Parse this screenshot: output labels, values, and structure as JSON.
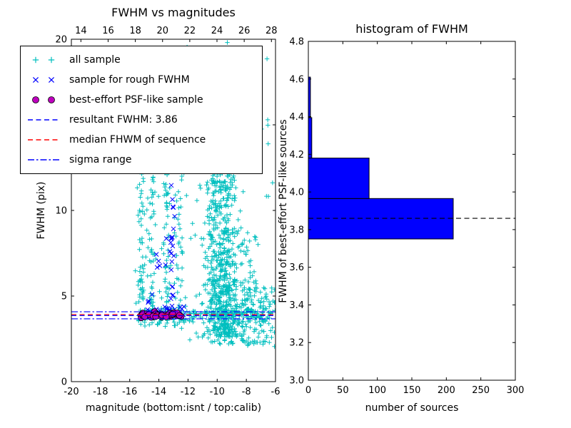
{
  "figure": {
    "background": "#ffffff",
    "text_color": "#000000"
  },
  "chart_data": [
    {
      "type": "scatter",
      "title": "FWHM vs magnitudes",
      "xlabel": "magnitude (bottom:isnt / top:calib)",
      "ylabel": "FWHM (pix)",
      "xlim": [
        -20,
        -6
      ],
      "ylim": [
        0,
        20
      ],
      "top_axis_range": [
        13.3,
        28.3
      ],
      "x_ticks_bottom": [
        -20,
        -18,
        -16,
        -14,
        -12,
        -10,
        -8,
        -6
      ],
      "x_ticks_top": [
        14,
        16,
        18,
        20,
        22,
        24,
        26,
        28
      ],
      "y_tick_values": [
        0,
        5,
        10,
        15,
        20
      ],
      "y_tick_labels": [
        "0",
        "5",
        "10",
        "15",
        "20"
      ],
      "series": [
        {
          "name": "all sample",
          "marker": "plus",
          "color": "#00bfbf",
          "clusters": [
            {
              "type": "column",
              "cx": -9.65,
              "sx": 0.55,
              "y0": 2.6,
              "y1": 13.5,
              "pow": 1.3,
              "count": 520
            },
            {
              "type": "column",
              "cx": -9.3,
              "sx": 0.9,
              "y0": 2.2,
              "y1": 6.0,
              "pow": 1.2,
              "count": 180
            },
            {
              "type": "column",
              "cx": -15.2,
              "sx": 0.12,
              "y0": 3.6,
              "y1": 13.3,
              "pow": 1,
              "count": 55
            },
            {
              "type": "column",
              "cx": -14.45,
              "sx": 0.12,
              "y0": 3.6,
              "y1": 12.2,
              "pow": 1,
              "count": 45
            },
            {
              "type": "column",
              "cx": -13.45,
              "sx": 0.15,
              "y0": 3.6,
              "y1": 14.0,
              "pow": 1,
              "count": 55
            },
            {
              "type": "column",
              "cx": -12.6,
              "sx": 0.15,
              "y0": 3.6,
              "y1": 12.0,
              "pow": 1,
              "count": 35
            },
            {
              "type": "band",
              "x0": -15.4,
              "x1": -6.1,
              "cy": 3.95,
              "sy": 0.18,
              "count": 160
            },
            {
              "type": "band",
              "x0": -15.3,
              "x1": -11.5,
              "cy": 3.4,
              "sy": 0.15,
              "count": 25
            },
            {
              "type": "uniform",
              "x0": -8.3,
              "x1": -6.0,
              "y0": 2.0,
              "y1": 5.5,
              "count": 110
            },
            {
              "type": "uniform",
              "x0": -12.3,
              "x1": -8.2,
              "y0": 13.5,
              "y1": 20.0,
              "count": 60
            },
            {
              "type": "uniform",
              "x0": -7.0,
              "x1": -6.1,
              "y0": 10.0,
              "y1": 19.0,
              "count": 8
            },
            {
              "type": "uniform",
              "x0": -16.0,
              "x1": -11.0,
              "y0": 4.0,
              "y1": 13.0,
              "count": 45
            },
            {
              "type": "column",
              "cx": -10.3,
              "sx": 0.3,
              "y0": 5.0,
              "y1": 17.0,
              "pow": 1.3,
              "count": 60
            },
            {
              "type": "uniform",
              "x0": -9.5,
              "x1": -7.2,
              "y0": 5.0,
              "y1": 9.0,
              "count": 50
            }
          ]
        },
        {
          "name": "sample for rough FWHM",
          "marker": "cross",
          "color": "#0000ff",
          "clusters": [
            {
              "type": "column",
              "cx": -13.05,
              "sx": 0.1,
              "y0": 3.9,
              "y1": 12.6,
              "pow": 1.4,
              "count": 26
            },
            {
              "type": "band",
              "x0": -14.9,
              "x1": -12.2,
              "cy": 4.15,
              "sy": 0.22,
              "count": 22
            },
            {
              "type": "uniform",
              "x0": -14.7,
              "x1": -13.2,
              "y0": 5.0,
              "y1": 9.5,
              "count": 8
            }
          ]
        },
        {
          "name": "best-effort PSF-like sample",
          "marker": "circle",
          "color": "#bf00bf",
          "edge": "#000000",
          "clusters": [
            {
              "type": "band",
              "x0": -15.25,
              "x1": -12.35,
              "cy": 3.88,
              "sy": 0.07,
              "count": 55
            }
          ]
        }
      ],
      "lines": [
        {
          "label": "resultant FWHM: 3.86",
          "y": [
            3.86
          ],
          "color": "#0000ff",
          "style": "dashed"
        },
        {
          "label": "median FHWM of sequence",
          "y": [
            3.92
          ],
          "color": "#ff0000",
          "style": "dashed"
        },
        {
          "label": "sigma range",
          "y": [
            3.67,
            4.08
          ],
          "color": "#0000ff",
          "style": "dashdot"
        }
      ],
      "legend": {
        "position": "upper-left",
        "items": [
          {
            "label": "all sample",
            "kind": "plus",
            "color": "#00bfbf"
          },
          {
            "label": "sample for rough FWHM",
            "kind": "cross",
            "color": "#0000ff"
          },
          {
            "label": "best-effort PSF-like sample",
            "kind": "circle",
            "color": "#bf00bf",
            "edge": "#000000"
          },
          {
            "label": "resultant FWHM: 3.86",
            "kind": "dashed",
            "color": "#0000ff"
          },
          {
            "label": "median FHWM of sequence",
            "kind": "dashed",
            "color": "#ff0000"
          },
          {
            "label": "sigma range",
            "kind": "dashdot",
            "color": "#0000ff"
          }
        ]
      }
    },
    {
      "type": "bar",
      "orientation": "horizontal",
      "title": "histogram of FWHM",
      "xlabel": "number of sources",
      "ylabel": "FWHM of best-effort PSF-like sources",
      "xlim": [
        0,
        300
      ],
      "ylim": [
        3.0,
        4.8
      ],
      "x_ticks": [
        0,
        50,
        100,
        150,
        200,
        250,
        300
      ],
      "y_tick_values": [
        3.0,
        3.2,
        3.4,
        3.6,
        3.8,
        4.0,
        4.2,
        4.4,
        4.6,
        4.8
      ],
      "y_tick_labels": [
        "3.0",
        "3.2",
        "3.4",
        "3.6",
        "3.8",
        "4.0",
        "4.2",
        "4.4",
        "4.6",
        "4.8"
      ],
      "bin_edges": [
        3.75,
        3.965,
        4.18,
        4.395,
        4.61
      ],
      "values": [
        210,
        88,
        5,
        3
      ],
      "bar_color": "#0000ff",
      "bar_edge_color": "#000000",
      "dashed_line_y": 3.86,
      "dashed_line_color": "#000000"
    }
  ]
}
